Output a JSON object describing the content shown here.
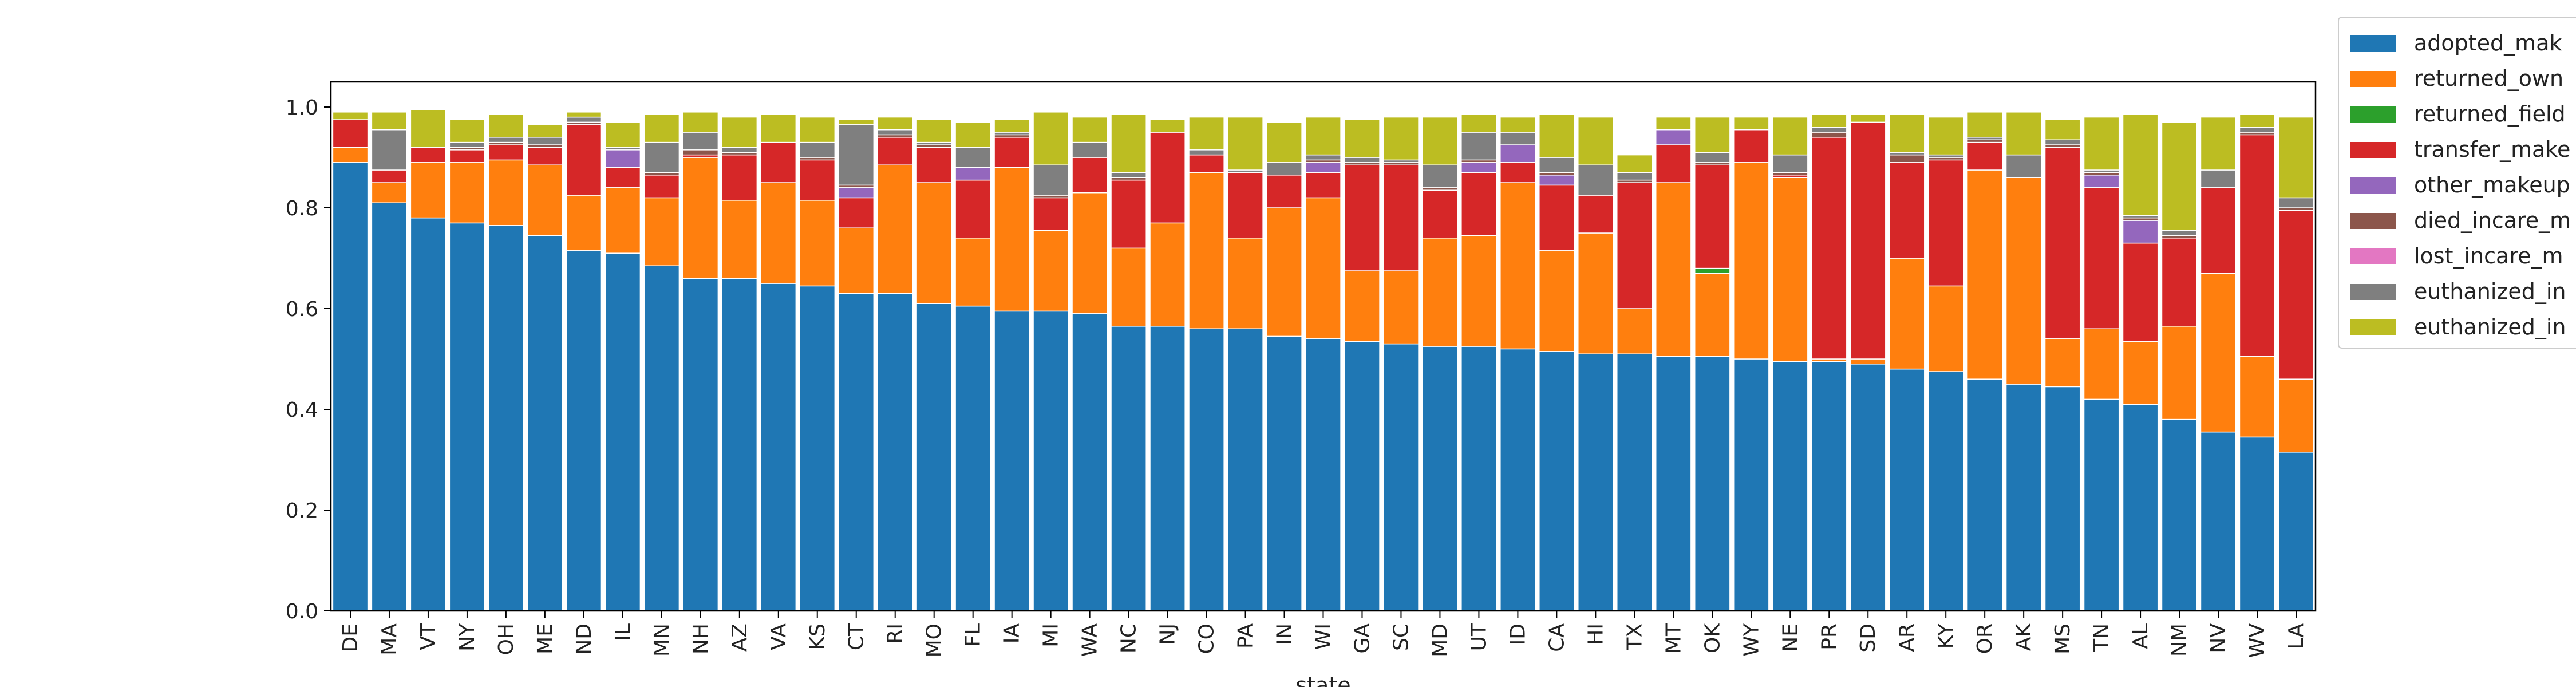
{
  "chart_data": {
    "type": "bar",
    "stacked": true,
    "xlabel": "state",
    "ylabel": "",
    "ylim": [
      0,
      1.05
    ],
    "yticks": [
      0.0,
      0.2,
      0.4,
      0.6,
      0.8,
      1.0
    ],
    "ytick_labels": [
      "0.0",
      "0.2",
      "0.4",
      "0.6",
      "0.8",
      "1.0"
    ],
    "grid": false,
    "legend_position": "right",
    "categories": [
      "DE",
      "MA",
      "VT",
      "NY",
      "OH",
      "ME",
      "ND",
      "IL",
      "MN",
      "NH",
      "AZ",
      "VA",
      "KS",
      "CT",
      "RI",
      "MO",
      "FL",
      "IA",
      "MI",
      "WA",
      "NC",
      "NJ",
      "CO",
      "PA",
      "IN",
      "WI",
      "GA",
      "SC",
      "MD",
      "UT",
      "ID",
      "CA",
      "HI",
      "TX",
      "MT",
      "OK",
      "WY",
      "NE",
      "PR",
      "SD",
      "AR",
      "KY",
      "OR",
      "AK",
      "MS",
      "TN",
      "AL",
      "NM",
      "NV",
      "WV",
      "LA"
    ],
    "series": [
      {
        "name": "adopted_mak",
        "color": "#1f77b4",
        "values": [
          0.89,
          0.81,
          0.78,
          0.77,
          0.765,
          0.745,
          0.715,
          0.71,
          0.685,
          0.66,
          0.66,
          0.65,
          0.645,
          0.63,
          0.63,
          0.61,
          0.605,
          0.595,
          0.595,
          0.59,
          0.565,
          0.565,
          0.56,
          0.56,
          0.545,
          0.54,
          0.535,
          0.53,
          0.525,
          0.525,
          0.52,
          0.515,
          0.51,
          0.51,
          0.505,
          0.505,
          0.5,
          0.495,
          0.495,
          0.49,
          0.48,
          0.475,
          0.46,
          0.45,
          0.445,
          0.42,
          0.41,
          0.38,
          0.355,
          0.345,
          0.315
        ]
      },
      {
        "name": "returned_own",
        "color": "#ff7f0e",
        "values": [
          0.03,
          0.04,
          0.11,
          0.12,
          0.13,
          0.14,
          0.11,
          0.13,
          0.135,
          0.24,
          0.155,
          0.2,
          0.17,
          0.13,
          0.255,
          0.24,
          0.135,
          0.285,
          0.16,
          0.24,
          0.155,
          0.205,
          0.31,
          0.18,
          0.255,
          0.28,
          0.14,
          0.145,
          0.215,
          0.22,
          0.33,
          0.2,
          0.24,
          0.09,
          0.345,
          0.165,
          0.39,
          0.365,
          0.005,
          0.01,
          0.22,
          0.17,
          0.415,
          0.41,
          0.095,
          0.14,
          0.125,
          0.185,
          0.315,
          0.16,
          0.145
        ]
      },
      {
        "name": "returned_field",
        "color": "#2ca02c",
        "values": [
          0,
          0,
          0,
          0,
          0,
          0,
          0,
          0,
          0,
          0,
          0,
          0,
          0,
          0,
          0,
          0,
          0,
          0,
          0,
          0,
          0,
          0,
          0,
          0,
          0,
          0,
          0,
          0,
          0,
          0,
          0,
          0,
          0,
          0,
          0,
          0.01,
          0,
          0,
          0,
          0,
          0,
          0,
          0,
          0,
          0,
          0,
          0,
          0,
          0,
          0,
          0
        ]
      },
      {
        "name": "transfer_make",
        "color": "#d62728",
        "values": [
          0.055,
          0.025,
          0.03,
          0.025,
          0.03,
          0.035,
          0.14,
          0.04,
          0.045,
          0.005,
          0.09,
          0.08,
          0.08,
          0.06,
          0.055,
          0.07,
          0.115,
          0.06,
          0.065,
          0.07,
          0.135,
          0.18,
          0.035,
          0.13,
          0.065,
          0.05,
          0.21,
          0.21,
          0.095,
          0.125,
          0.04,
          0.13,
          0.075,
          0.25,
          0.075,
          0.205,
          0.065,
          0.005,
          0.44,
          0.47,
          0.19,
          0.25,
          0.055,
          0,
          0.38,
          0.28,
          0.195,
          0.175,
          0.17,
          0.44,
          0.335
        ]
      },
      {
        "name": "other_makeup",
        "color": "#9467bd",
        "values": [
          0,
          0,
          0,
          0,
          0,
          0,
          0,
          0.035,
          0,
          0,
          0,
          0,
          0,
          0.02,
          0,
          0,
          0.025,
          0,
          0,
          0,
          0,
          0,
          0,
          0,
          0,
          0.02,
          0,
          0,
          0,
          0.02,
          0.035,
          0.02,
          0,
          0,
          0.03,
          0,
          0,
          0,
          0,
          0,
          0,
          0,
          0,
          0,
          0,
          0.025,
          0.045,
          0,
          0,
          0,
          0
        ]
      },
      {
        "name": "died_incare_m",
        "color": "#8c564b",
        "values": [
          0,
          0,
          0,
          0.005,
          0.005,
          0.005,
          0.005,
          0,
          0.005,
          0.01,
          0.005,
          0,
          0.005,
          0.005,
          0.005,
          0.005,
          0,
          0.005,
          0.005,
          0,
          0.005,
          0,
          0,
          0,
          0,
          0.005,
          0.005,
          0.005,
          0.005,
          0.005,
          0,
          0.005,
          0,
          0.005,
          0,
          0.005,
          0,
          0.005,
          0.01,
          0,
          0.015,
          0.005,
          0.005,
          0,
          0.005,
          0.005,
          0.005,
          0.005,
          0,
          0.005,
          0.005
        ]
      },
      {
        "name": "lost_incare_m",
        "color": "#e377c2",
        "values": [
          0,
          0,
          0,
          0,
          0,
          0,
          0,
          0,
          0,
          0,
          0,
          0,
          0,
          0,
          0,
          0,
          0,
          0,
          0,
          0,
          0,
          0,
          0,
          0,
          0,
          0,
          0,
          0,
          0,
          0,
          0,
          0,
          0,
          0,
          0,
          0,
          0,
          0,
          0,
          0,
          0,
          0,
          0,
          0,
          0,
          0,
          0,
          0,
          0,
          0,
          0
        ]
      },
      {
        "name": "euthanized_in",
        "color": "#7f7f7f",
        "values": [
          0,
          0.08,
          0,
          0.01,
          0.01,
          0.015,
          0.01,
          0.005,
          0.06,
          0.035,
          0.01,
          0,
          0.03,
          0.12,
          0.01,
          0.005,
          0.04,
          0.005,
          0.06,
          0.03,
          0.01,
          0,
          0.01,
          0.005,
          0.025,
          0.01,
          0.01,
          0.005,
          0.045,
          0.055,
          0.025,
          0.03,
          0.06,
          0.015,
          0,
          0.02,
          0,
          0.035,
          0.01,
          0,
          0.005,
          0.005,
          0.005,
          0.045,
          0.01,
          0.005,
          0.005,
          0.01,
          0.035,
          0.01,
          0.02
        ]
      },
      {
        "name": "euthanized_in",
        "color": "#bcbd22",
        "values": [
          0.015,
          0.035,
          0.075,
          0.045,
          0.045,
          0.025,
          0.01,
          0.05,
          0.055,
          0.04,
          0.06,
          0.055,
          0.05,
          0.01,
          0.025,
          0.045,
          0.05,
          0.025,
          0.105,
          0.05,
          0.115,
          0.025,
          0.065,
          0.105,
          0.08,
          0.075,
          0.075,
          0.085,
          0.095,
          0.035,
          0.03,
          0.085,
          0.095,
          0.035,
          0.025,
          0.07,
          0.025,
          0.075,
          0.025,
          0.015,
          0.075,
          0.075,
          0.05,
          0.085,
          0.04,
          0.105,
          0.2,
          0.215,
          0.105,
          0.025,
          0.16
        ]
      }
    ]
  }
}
